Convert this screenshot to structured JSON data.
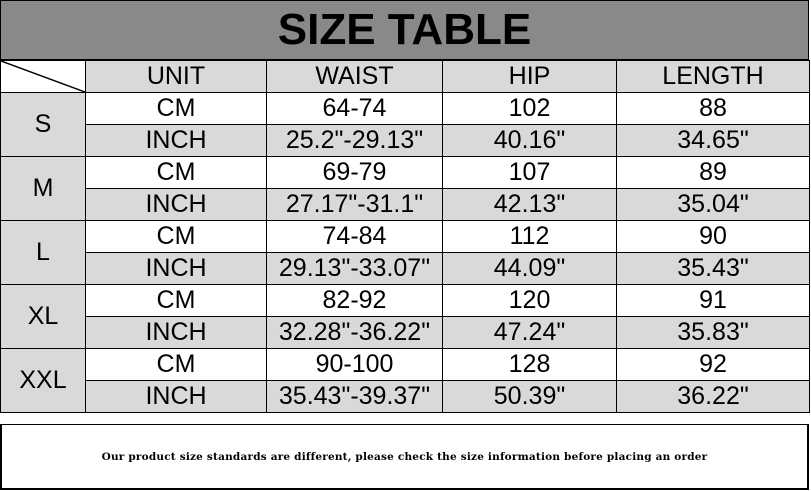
{
  "title": "SIZE TABLE",
  "headers": [
    "UNIT",
    "WAIST",
    "HIP",
    "LENGTH"
  ],
  "rows": [
    {
      "size": "S",
      "cm": {
        "unit": "CM",
        "waist": "64-74",
        "hip": "102",
        "length": "88"
      },
      "inch": {
        "unit": "INCH",
        "waist": "25.2\"-29.13\"",
        "hip": "40.16\"",
        "length": "34.65\""
      }
    },
    {
      "size": "M",
      "cm": {
        "unit": "CM",
        "waist": "69-79",
        "hip": "107",
        "length": "89"
      },
      "inch": {
        "unit": "INCH",
        "waist": "27.17\"-31.1\"",
        "hip": "42.13\"",
        "length": "35.04\""
      }
    },
    {
      "size": "L",
      "cm": {
        "unit": "CM",
        "waist": "74-84",
        "hip": "112",
        "length": "90"
      },
      "inch": {
        "unit": "INCH",
        "waist": "29.13\"-33.07\"",
        "hip": "44.09\"",
        "length": "35.43\""
      }
    },
    {
      "size": "XL",
      "cm": {
        "unit": "CM",
        "waist": "82-92",
        "hip": "120",
        "length": "91"
      },
      "inch": {
        "unit": "INCH",
        "waist": "32.28\"-36.22\"",
        "hip": "47.24\"",
        "length": "35.83\""
      }
    },
    {
      "size": "XXL",
      "cm": {
        "unit": "CM",
        "waist": "90-100",
        "hip": "128",
        "length": "92"
      },
      "inch": {
        "unit": "INCH",
        "waist": "35.43\"-39.37\"",
        "hip": "50.39\"",
        "length": "36.22\""
      }
    }
  ],
  "footer": "Our product size standards are different, please check the size information before placing an order",
  "colors": {
    "title_bg": "#898989",
    "shade": "#d9d9d9"
  }
}
